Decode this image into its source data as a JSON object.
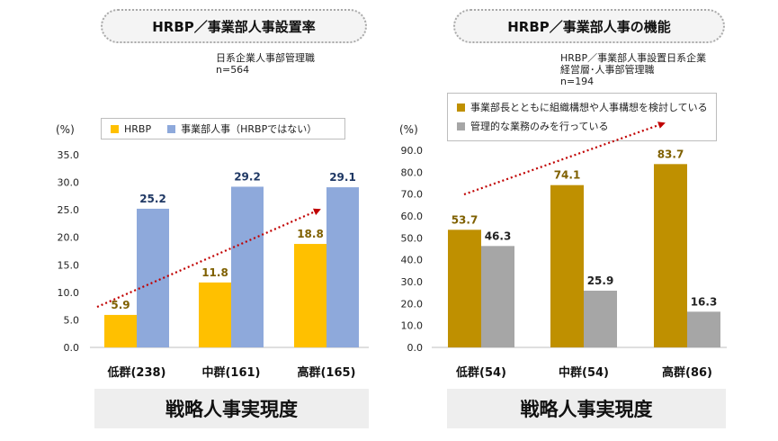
{
  "left": {
    "title": "HRBP／事業部人事設置率",
    "note_lines": [
      "日系企業人事部管理職",
      "n=564"
    ],
    "legend": [
      "HRBP",
      "事業部人事（HRBPではない）"
    ],
    "footer": "戦略人事実現度",
    "unit_label": "(%)"
  },
  "right": {
    "title": "HRBP／事業部人事の機能",
    "note_lines": [
      "HRBP／事業部人事設置日系企業",
      "経営層･人事部管理職",
      "n=194"
    ],
    "legend": [
      "事業部長とともに組織構想や人事構想を検討している",
      "管理的な業務のみを行っている"
    ],
    "footer": "戦略人事実現度",
    "unit_label": "(%)"
  },
  "colors": {
    "yellow": "#FFC000",
    "blue": "#8EA9DB",
    "gold": "#BF9000",
    "gray": "#A6A6A6",
    "trend": "#C00000",
    "value_dark": "#1F3864",
    "value_gold": "#7F6000"
  },
  "chart_data": [
    {
      "type": "bar",
      "title": "HRBP／事業部人事設置率",
      "categories": [
        "低群(238)",
        "中群(161)",
        "高群(165)"
      ],
      "series": [
        {
          "name": "HRBP",
          "values": [
            5.9,
            11.8,
            18.8
          ]
        },
        {
          "name": "事業部人事（HRBPではない）",
          "values": [
            25.2,
            29.2,
            29.1
          ]
        }
      ],
      "ylabel": "(%)",
      "xlabel": "戦略人事実現度",
      "ylim": [
        0,
        35
      ],
      "yticks": [
        "0.0",
        "5.0",
        "10.0",
        "15.0",
        "20.0",
        "25.0",
        "30.0",
        "35.0"
      ],
      "trend_arrow": true
    },
    {
      "type": "bar",
      "title": "HRBP／事業部人事の機能",
      "categories": [
        "低群(54)",
        "中群(54)",
        "高群(86)"
      ],
      "series": [
        {
          "name": "事業部長とともに組織構想や人事構想を検討している",
          "values": [
            53.7,
            74.1,
            83.7
          ]
        },
        {
          "name": "管理的な業務のみを行っている",
          "values": [
            46.3,
            25.9,
            16.3
          ]
        }
      ],
      "ylabel": "(%)",
      "xlabel": "戦略人事実現度",
      "ylim": [
        0,
        90
      ],
      "yticks": [
        "0.0",
        "10.0",
        "20.0",
        "30.0",
        "40.0",
        "50.0",
        "60.0",
        "70.0",
        "80.0",
        "90.0"
      ],
      "trend_arrow": true
    }
  ]
}
